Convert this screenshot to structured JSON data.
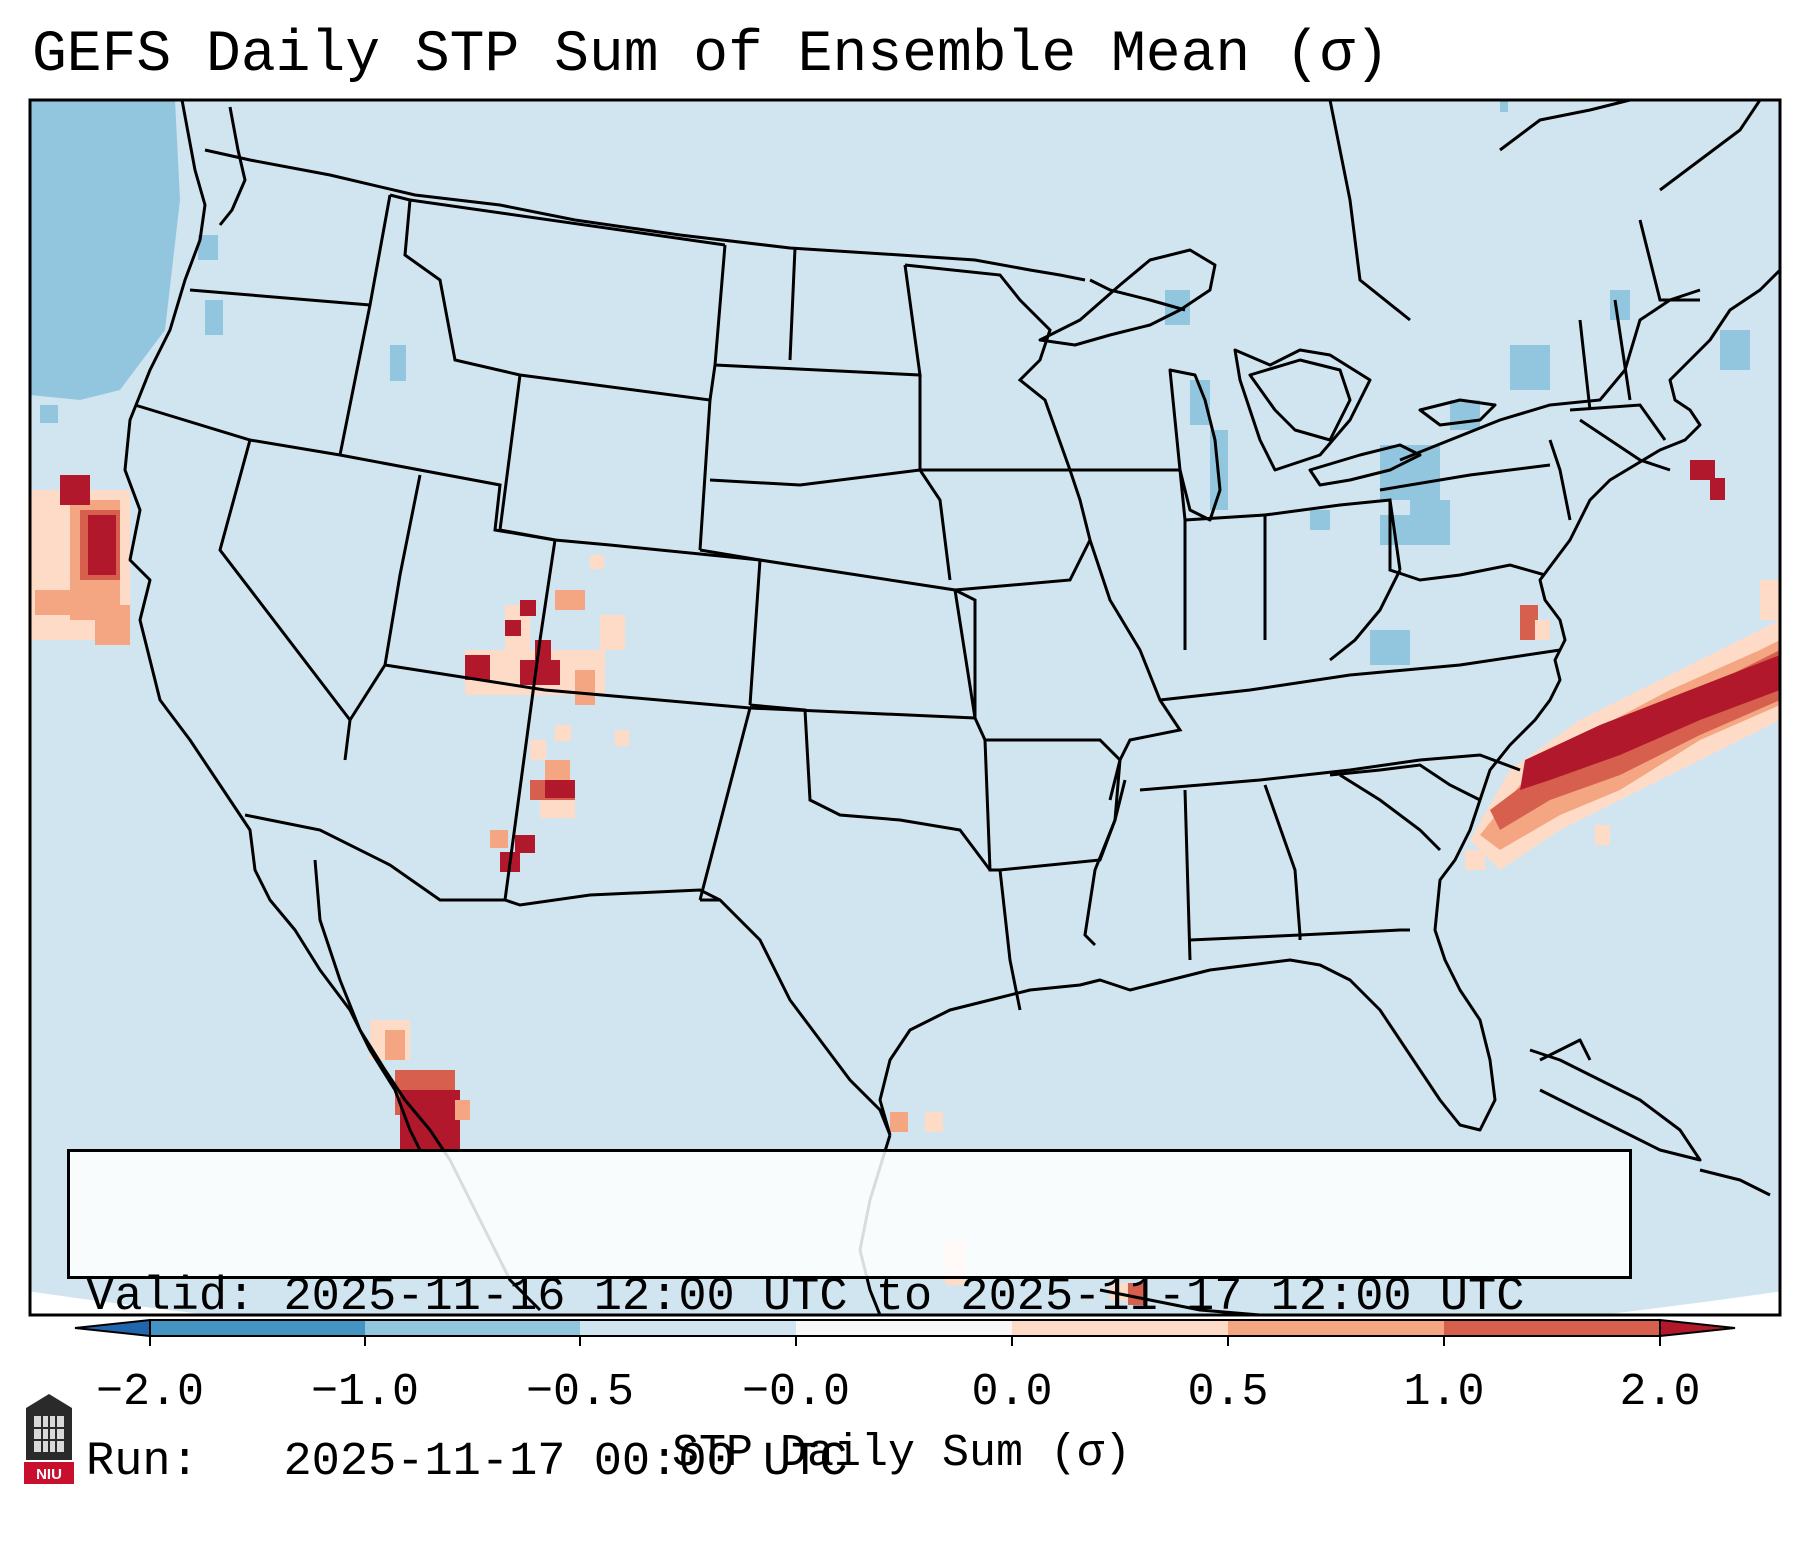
{
  "title": "GEFS Daily STP Sum of Ensemble Mean (σ)",
  "info": {
    "valid_label": "Valid:",
    "valid_value": "2025-11-16 12:00 UTC to 2025-11-17 12:00 UTC",
    "run_label": "Run:",
    "run_value": "2025-11-17 00:00 UTC"
  },
  "colorbar": {
    "label": "STP Daily Sum (σ)",
    "ticks": [
      "−2.0",
      "−1.0",
      "−0.5",
      "−0.0",
      "0.0",
      "0.5",
      "1.0",
      "2.0"
    ],
    "bins": [
      {
        "range": "< -2.0",
        "color": "#2166ac"
      },
      {
        "range": "-2.0 to -1.0",
        "color": "#4393c3"
      },
      {
        "range": "-1.0 to -0.5",
        "color": "#92c5de"
      },
      {
        "range": "-0.5 to -0.0",
        "color": "#d1e5f0"
      },
      {
        "range": "-0.0 to 0.0",
        "color": "#f7f7f7"
      },
      {
        "range": "0.0 to 0.5",
        "color": "#fddbc7"
      },
      {
        "range": "0.5 to 1.0",
        "color": "#f4a582"
      },
      {
        "range": "1.0 to 2.0",
        "color": "#d6604d"
      },
      {
        "range": "> 2.0",
        "color": "#b2182b"
      }
    ]
  },
  "map": {
    "background_color": "#d1e5f0",
    "region": "Contiguous United States, northern Mexico, western Atlantic"
  },
  "logo": {
    "text": "NIU"
  }
}
